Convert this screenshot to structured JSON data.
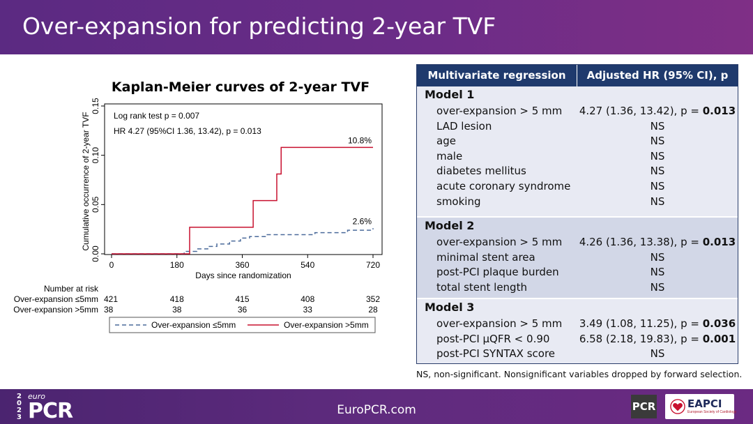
{
  "slide": {
    "title": "Over-expansion for predicting 2-year TVF",
    "footer_site": "EuroPCR.com",
    "logo": {
      "year": "2023",
      "euro": "euro",
      "pcr": "PCR"
    },
    "partner_logos": {
      "pcr": "PCR",
      "eapci": "EAPCI",
      "eapci_sub": "European Society of Cardiology"
    }
  },
  "chart_data": {
    "type": "line",
    "title": "Kaplan-Meier curves of 2-year TVF",
    "xlabel": "Days since randomization",
    "ylabel": "Cumulative occurrence of 2-year TVF",
    "xlim": [
      0,
      720
    ],
    "ylim": [
      0,
      0.15
    ],
    "xticks": [
      "0",
      "180",
      "360",
      "540",
      "720"
    ],
    "yticks": [
      "0.00",
      "0.05",
      "0.10",
      "0.15"
    ],
    "grid": false,
    "annotations": [
      "Log rank test p = 0.007",
      "HR 4.27 (95%CI 1.36, 13.42), p = 0.013"
    ],
    "legend_position": "bottom",
    "series": [
      {
        "name": "Over-expansion ≤5mm",
        "end_label": "2.6%",
        "color": "#4a6a9a",
        "style": "dashed",
        "x": [
          0,
          200,
          235,
          265,
          290,
          325,
          355,
          380,
          425,
          560,
          650,
          720
        ],
        "y": [
          0,
          0.0025,
          0.005,
          0.0075,
          0.01,
          0.013,
          0.016,
          0.0175,
          0.0195,
          0.0215,
          0.024,
          0.026
        ]
      },
      {
        "name": "Over-expansion >5mm",
        "end_label": "10.8%",
        "color": "#c8102e",
        "style": "solid",
        "x": [
          0,
          215,
          390,
          455,
          467,
          720
        ],
        "y": [
          0,
          0.027,
          0.054,
          0.081,
          0.108,
          0.108
        ]
      }
    ],
    "risk_table": {
      "title": "Number at risk",
      "rows": [
        {
          "label": "Over-expansion ≤5mm",
          "values": [
            "421",
            "418",
            "415",
            "408",
            "352"
          ]
        },
        {
          "label": "Over-expansion >5mm",
          "values": [
            "38",
            "38",
            "36",
            "33",
            "28"
          ]
        }
      ]
    }
  },
  "table": {
    "col1": "Multivariate regression",
    "col2": "Adjusted HR (95% CI), p",
    "models": [
      {
        "name": "Model 1",
        "rows": [
          {
            "label": "over-expansion > 5 mm",
            "val": "4.27 (1.36, 13.42), p = ",
            "bold": "0.013"
          },
          {
            "label": "LAD lesion",
            "val": "NS",
            "bold": ""
          },
          {
            "label": "age",
            "val": "NS",
            "bold": ""
          },
          {
            "label": "male",
            "val": "NS",
            "bold": ""
          },
          {
            "label": "diabetes mellitus",
            "val": "NS",
            "bold": ""
          },
          {
            "label": "acute coronary syndrome",
            "val": "NS",
            "bold": ""
          },
          {
            "label": "smoking",
            "val": "NS",
            "bold": ""
          }
        ]
      },
      {
        "name": "Model 2",
        "rows": [
          {
            "label": "over-expansion > 5 mm",
            "val": "4.26 (1.36, 13.38), p = ",
            "bold": "0.013"
          },
          {
            "label": "minimal stent area",
            "val": "NS",
            "bold": ""
          },
          {
            "label": "post-PCI plaque burden",
            "val": "NS",
            "bold": ""
          },
          {
            "label": "total stent length",
            "val": "NS",
            "bold": ""
          }
        ]
      },
      {
        "name": "Model 3",
        "rows": [
          {
            "label": "over-expansion > 5 mm",
            "val": "3.49 (1.08, 11.25), p = ",
            "bold": "0.036"
          },
          {
            "label": "post-PCI µQFR < 0.90",
            "val": "6.58 (2.18, 19.83), p = ",
            "bold": "0.001"
          },
          {
            "label": "post-PCI SYNTAX score",
            "val": "NS",
            "bold": ""
          }
        ]
      }
    ],
    "note": "NS, non-significant. Nonsignificant variables dropped by forward selection."
  }
}
